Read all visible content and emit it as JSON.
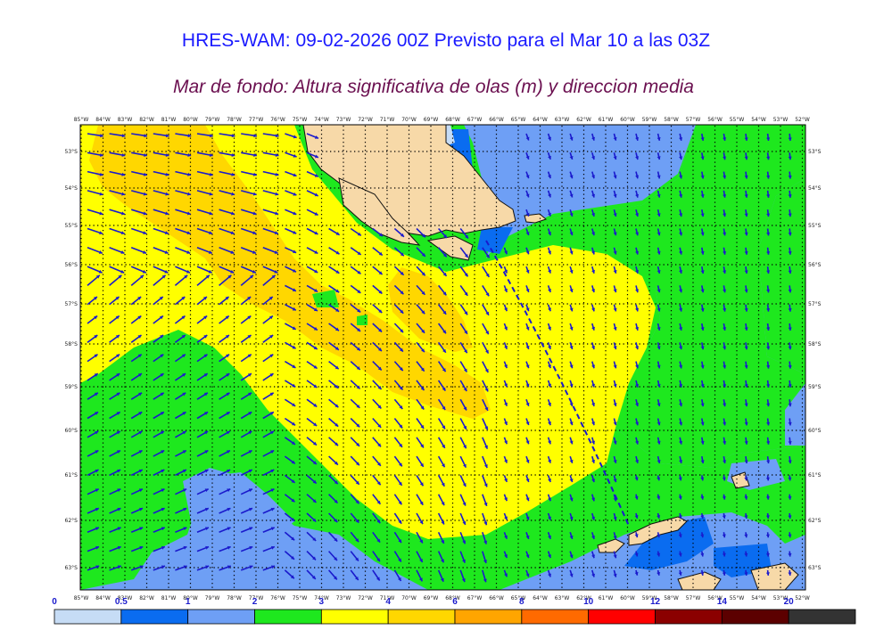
{
  "header": {
    "title": "HRES-WAM: 09-02-2026 00Z Previsto para el Mar 10 a las 03Z",
    "subtitle": "Mar de fondo: Altura significativa de olas (m) y direccion media"
  },
  "axes": {
    "top_lon_labels": [
      "85°W",
      "84°W",
      "83°W",
      "82°W",
      "81°W",
      "80°W",
      "79°W",
      "78°W",
      "77°W",
      "76°W",
      "75°W",
      "74°W",
      "73°W",
      "72°W",
      "71°W",
      "70°W",
      "69°W",
      "68°W",
      "67°W",
      "66°W",
      "65°W",
      "64°W",
      "63°W",
      "62°W",
      "61°W",
      "60°W",
      "59°W",
      "58°W",
      "57°W",
      "56°W",
      "55°W",
      "54°W",
      "53°W",
      "52°W"
    ],
    "bottom_lon_labels": [
      "85°W",
      "84°W",
      "83°W",
      "82°W",
      "81°W",
      "80°W",
      "79°W",
      "78°W",
      "77°W",
      "76°W",
      "75°W",
      "74°W",
      "73°W",
      "72°W",
      "71°W",
      "70°W",
      "69°W",
      "68°W",
      "67°W",
      "66°W",
      "65°W",
      "64°W",
      "63°W",
      "62°W",
      "61°W",
      "60°W",
      "59°W",
      "58°W",
      "57°W",
      "56°W",
      "55°W",
      "54°W",
      "53°W",
      "52°W"
    ],
    "lat_labels": [
      "53°S",
      "54°S",
      "55°S",
      "56°S",
      "57°S",
      "58°S",
      "59°S",
      "60°S",
      "61°S",
      "62°S",
      "63°S"
    ]
  },
  "colorbar": {
    "tick_labels": [
      "0",
      "0.5",
      "1",
      "2",
      "3",
      "4",
      "6",
      "8",
      "10",
      "12",
      "14",
      "20"
    ],
    "colors": [
      "#c6dcf5",
      "#0a6cf0",
      "#6e9ff5",
      "#1ee81e",
      "#ffff00",
      "#ffd700",
      "#ffa500",
      "#ff6a00",
      "#ff0000",
      "#8b0000",
      "#5c0000",
      "#333333"
    ]
  },
  "map_colors": {
    "swell_0_5_1": "#0a6cf0",
    "swell_1_2": "#6e9ff5",
    "swell_2_3": "#1ee81e",
    "swell_3_4": "#ffff00",
    "swell_4_6": "#ffd700",
    "land": "#f7d9a8",
    "arrows": "#1a1acc",
    "track": "#1a1acc"
  }
}
